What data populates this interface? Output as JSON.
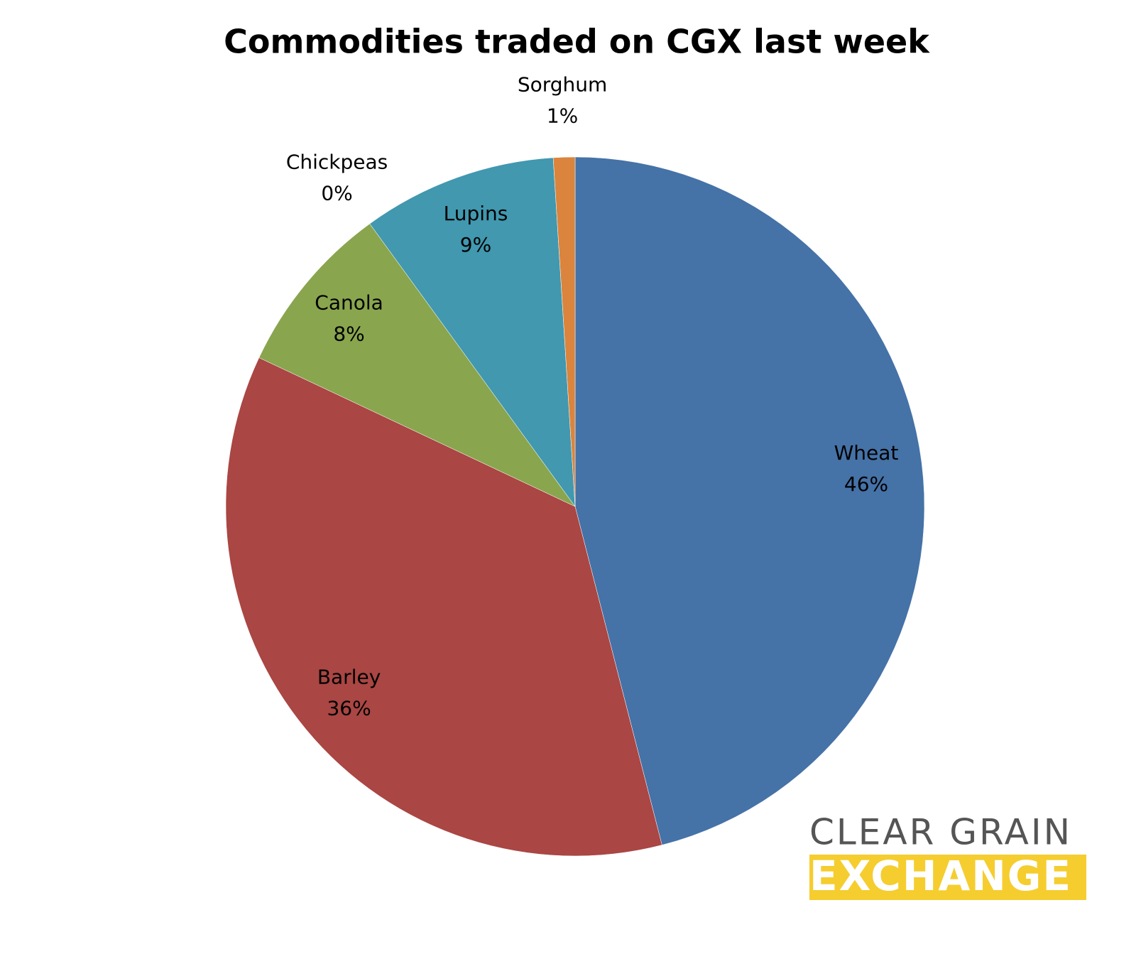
{
  "chart_data": {
    "type": "pie",
    "title": "Commodities traded on CGX last week",
    "categories": [
      "Wheat",
      "Barley",
      "Canola",
      "Chickpeas",
      "Lupins",
      "Sorghum"
    ],
    "values": [
      46,
      36,
      8,
      0,
      9,
      1
    ],
    "value_labels": [
      "46%",
      "36%",
      "8%",
      "0%",
      "9%",
      "1%"
    ],
    "colors": [
      "#4572a7",
      "#aa4643",
      "#89a54e",
      "#71588f",
      "#4198af",
      "#db843d"
    ]
  },
  "logo": {
    "line1": "CLEAR GRAIN",
    "line2": "EXCHANGE"
  }
}
